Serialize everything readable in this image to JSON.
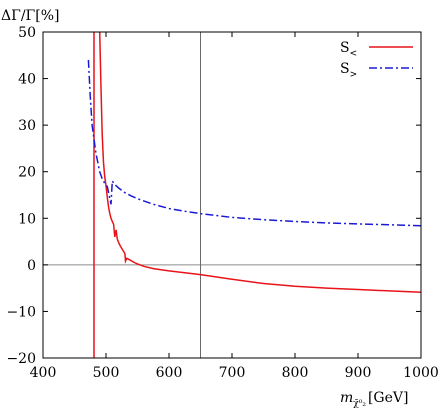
{
  "chart_data": {
    "type": "line",
    "title": "",
    "xlabel": {
      "main": "m",
      "subscript": "χ̃⁰₂",
      "unit": "[GeV]"
    },
    "ylabel": "ΔΓ/Γ[%]",
    "xlim": [
      400,
      1000
    ],
    "ylim": [
      -20,
      50
    ],
    "x_ticks": [
      400,
      500,
      600,
      700,
      800,
      900,
      1000
    ],
    "y_ticks": [
      -20,
      -10,
      0,
      10,
      20,
      30,
      40,
      50
    ],
    "x_tick_labels": [
      "400",
      "500",
      "600",
      "700",
      "800",
      "900",
      "1000"
    ],
    "y_tick_labels": [
      "−20",
      "−10",
      "0",
      "10",
      "20",
      "30",
      "40",
      "50"
    ],
    "reference_lines": {
      "horizontal_y": 0,
      "vertical_x": 650
    },
    "legend_position": "top-right",
    "series": [
      {
        "name": "S<",
        "legend_main": "S",
        "legend_sub": "<",
        "color": "#e8141a",
        "style": "solid",
        "segments": [
          {
            "x": [
              481,
              481
            ],
            "y": [
              -20,
              50
            ]
          },
          {
            "x": [
              490,
              492,
              494,
              496,
              498,
              500,
              502,
              504,
              506,
              508,
              510,
              512,
              514,
              516,
              518,
              520,
              522,
              524,
              526,
              528,
              530,
              531,
              533,
              536,
              540,
              545,
              550,
              560,
              575,
              600,
              625,
              650,
              700,
              750,
              800,
              850,
              900,
              950,
              1000
            ],
            "y": [
              50,
              38,
              28,
              22,
              19,
              17,
              14.5,
              12.5,
              11,
              10,
              9.3,
              8.7,
              6,
              7.5,
              5.5,
              4.8,
              4.2,
              3.8,
              3.3,
              2.9,
              2.4,
              0.8,
              1.4,
              1.2,
              0.9,
              0.5,
              0.2,
              -0.3,
              -0.8,
              -1.3,
              -1.7,
              -2.1,
              -3.1,
              -4,
              -4.6,
              -5.0,
              -5.3,
              -5.6,
              -5.9
            ]
          }
        ]
      },
      {
        "name": "S>",
        "legend_main": "S",
        "legend_sub": ">",
        "color": "#1a1ad4",
        "style": "dashdot",
        "segments": [
          {
            "x": [
              472,
              475,
              478,
              481,
              484,
              487,
              490,
              494,
              498,
              502,
              505,
              508,
              510,
              512,
              516,
              520,
              530,
              540,
              550,
              575,
              600,
              625,
              650,
              700,
              750,
              800,
              850,
              900,
              950,
              1000
            ],
            "y": [
              44,
              36,
              30,
              27,
              24,
              22,
              20,
              18.5,
              17.5,
              16.8,
              15,
              13,
              18,
              17.6,
              17,
              16.5,
              15.5,
              14.8,
              14.2,
              13,
              12.1,
              11.5,
              11.0,
              10.2,
              9.7,
              9.3,
              9.0,
              8.8,
              8.6,
              8.4
            ]
          }
        ]
      }
    ]
  }
}
